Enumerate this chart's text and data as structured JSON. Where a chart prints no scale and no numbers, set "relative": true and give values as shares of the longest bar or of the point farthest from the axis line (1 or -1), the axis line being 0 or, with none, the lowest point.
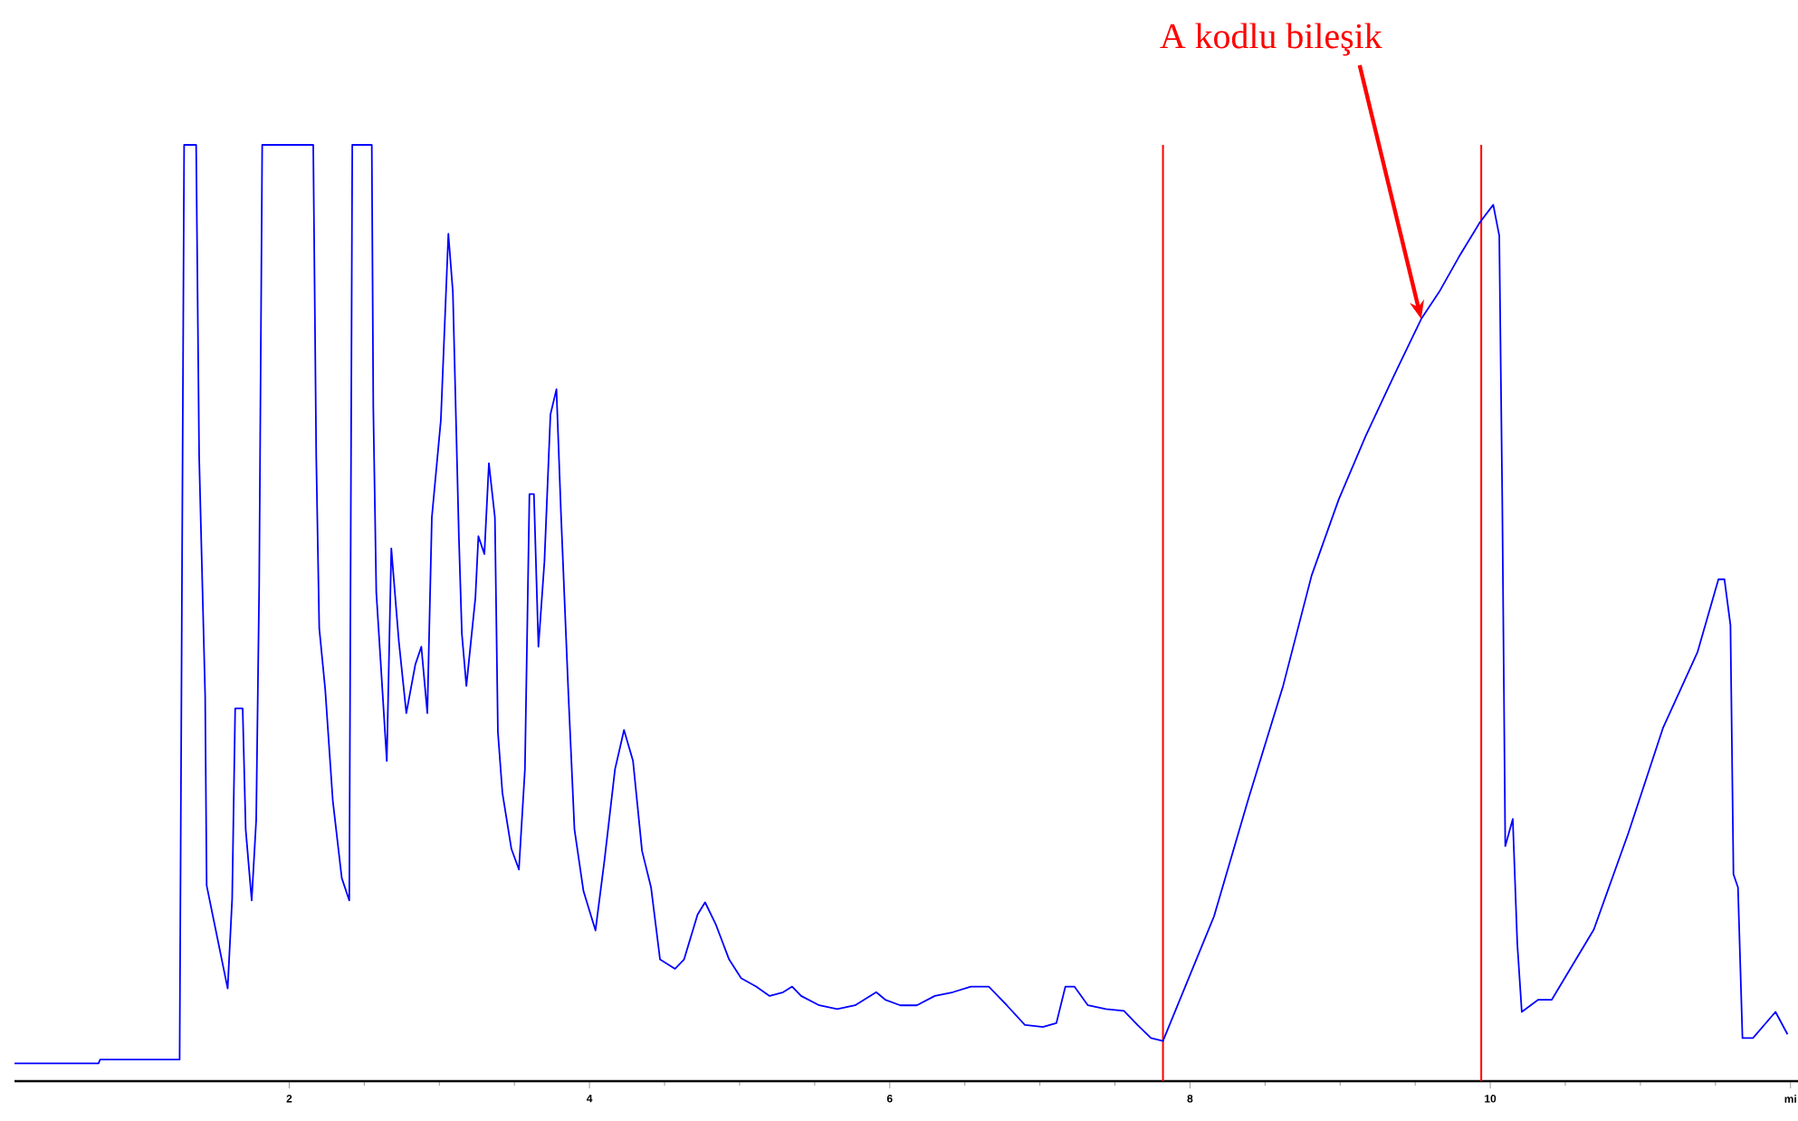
{
  "chart_data": {
    "type": "line",
    "relative": true,
    "color": "#0000ff",
    "tick_labels": "x",
    "xlim": [
      0.17,
      12.05
    ],
    "xticks": [
      2,
      4,
      6,
      8,
      10,
      {
        "value": 12,
        "label": "mi"
      }
    ],
    "ref_lines": [
      {
        "axis": "x",
        "value": 7.82,
        "color": "#ff0000"
      },
      {
        "axis": "x",
        "value": 9.94,
        "color": "#ff0000"
      }
    ],
    "annotations": [
      {
        "text": "A kodlu bileşik",
        "x": 9.54,
        "y": 0.814
      }
    ],
    "x": [
      0.17,
      0.73,
      0.74,
      1.27,
      1.3,
      1.38,
      1.4,
      1.44,
      1.45,
      1.59,
      1.62,
      1.64,
      1.69,
      1.71,
      1.75,
      1.78,
      1.8,
      1.82,
      2.16,
      2.18,
      2.2,
      2.24,
      2.29,
      2.35,
      2.4,
      2.42,
      2.55,
      2.56,
      2.58,
      2.61,
      2.65,
      2.68,
      2.73,
      2.78,
      2.84,
      2.88,
      2.92,
      2.95,
      3.01,
      3.06,
      3.09,
      3.13,
      3.15,
      3.18,
      3.24,
      3.26,
      3.3,
      3.33,
      3.37,
      3.39,
      3.42,
      3.48,
      3.53,
      3.57,
      3.6,
      3.63,
      3.66,
      3.7,
      3.74,
      3.78,
      3.81,
      3.86,
      3.9,
      3.96,
      4.04,
      4.1,
      4.17,
      4.23,
      4.29,
      4.35,
      4.41,
      4.47,
      4.57,
      4.63,
      4.72,
      4.77,
      4.84,
      4.93,
      5.01,
      5.11,
      5.2,
      5.29,
      5.35,
      5.41,
      5.53,
      5.65,
      5.77,
      5.83,
      5.91,
      5.97,
      6.07,
      6.18,
      6.3,
      6.42,
      6.54,
      6.66,
      6.78,
      6.9,
      7.02,
      7.11,
      7.17,
      7.23,
      7.32,
      7.44,
      7.56,
      7.65,
      7.74,
      7.82,
      8.16,
      8.39,
      8.62,
      8.81,
      8.99,
      9.17,
      9.36,
      9.54,
      9.66,
      9.79,
      9.93,
      10.02,
      10.06,
      10.08,
      10.1,
      10.15,
      10.18,
      10.21,
      10.32,
      10.41,
      10.69,
      10.92,
      11.15,
      11.38,
      11.52,
      11.56,
      11.6,
      11.62,
      11.65,
      11.68,
      11.75,
      11.9,
      11.98
    ],
    "values": [
      0.019,
      0.019,
      0.023,
      0.023,
      1,
      1,
      0.667,
      0.412,
      0.209,
      0.099,
      0.195,
      0.398,
      0.398,
      0.269,
      0.193,
      0.279,
      0.53,
      1,
      1,
      0.667,
      0.484,
      0.418,
      0.3,
      0.217,
      0.193,
      1,
      1,
      0.72,
      0.522,
      0.445,
      0.342,
      0.569,
      0.47,
      0.393,
      0.445,
      0.464,
      0.393,
      0.602,
      0.706,
      0.905,
      0.843,
      0.582,
      0.478,
      0.422,
      0.516,
      0.582,
      0.563,
      0.66,
      0.602,
      0.373,
      0.308,
      0.248,
      0.226,
      0.333,
      0.627,
      0.627,
      0.464,
      0.555,
      0.712,
      0.739,
      0.607,
      0.412,
      0.269,
      0.203,
      0.161,
      0.236,
      0.333,
      0.375,
      0.342,
      0.246,
      0.207,
      0.13,
      0.12,
      0.13,
      0.178,
      0.191,
      0.168,
      0.13,
      0.11,
      0.101,
      0.091,
      0.095,
      0.101,
      0.091,
      0.081,
      0.077,
      0.081,
      0.087,
      0.095,
      0.087,
      0.081,
      0.081,
      0.091,
      0.095,
      0.101,
      0.101,
      0.081,
      0.06,
      0.058,
      0.062,
      0.101,
      0.101,
      0.081,
      0.077,
      0.075,
      0.06,
      0.046,
      0.043,
      0.176,
      0.302,
      0.422,
      0.54,
      0.621,
      0.689,
      0.754,
      0.814,
      0.843,
      0.88,
      0.917,
      0.936,
      0.903,
      0.621,
      0.251,
      0.28,
      0.147,
      0.074,
      0.087,
      0.087,
      0.162,
      0.265,
      0.377,
      0.458,
      0.536,
      0.536,
      0.487,
      0.221,
      0.207,
      0.046,
      0.046,
      0.074,
      0.05
    ]
  }
}
